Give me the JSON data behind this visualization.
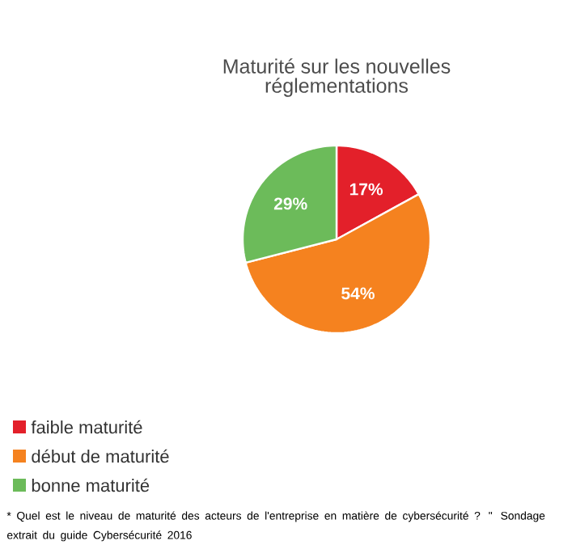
{
  "chart_data": {
    "type": "pie",
    "title": "Maturité sur les nouvelles réglementations",
    "categories": [
      "faible maturité",
      "début de maturité",
      "bonne maturité"
    ],
    "values": [
      17,
      54,
      29
    ],
    "colors": [
      "#e3202a",
      "#f5821f",
      "#6cbb5a"
    ],
    "value_labels": [
      "17%",
      "54%",
      "29%"
    ],
    "legend": "bottom left",
    "annotations": [
      "* Quel est le niveau de maturité des acteurs de l'entreprise en matière de cybersécurité ? \"  Sondage extrait du guide Cybersécurité 2016"
    ]
  }
}
